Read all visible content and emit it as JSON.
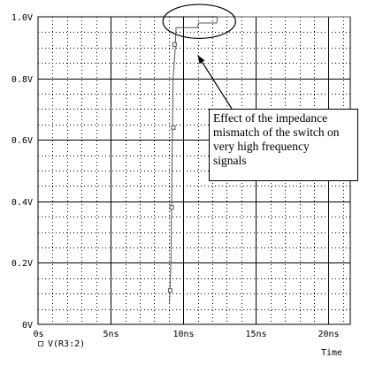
{
  "chart_data": {
    "type": "line",
    "xlabel": "Time",
    "xlim": [
      0,
      21.5
    ],
    "ylim": [
      0,
      1.0
    ],
    "x_tick_labels": [
      {
        "value": 0,
        "label": "0s"
      },
      {
        "value": 5,
        "label": "5ns"
      },
      {
        "value": 10,
        "label": "10ns"
      },
      {
        "value": 15,
        "label": "15ns"
      },
      {
        "value": 20,
        "label": "20ns"
      }
    ],
    "y_tick_labels": [
      {
        "value": 0,
        "label": "0V"
      },
      {
        "value": 0.2,
        "label": "0.2V"
      },
      {
        "value": 0.4,
        "label": "0.4V"
      },
      {
        "value": 0.6,
        "label": "0.6V"
      },
      {
        "value": 0.8,
        "label": "0.8V"
      },
      {
        "value": 1.0,
        "label": "1.0V"
      }
    ],
    "grid": {
      "major": true,
      "minor_dotted": true,
      "x_minor_step": 1,
      "y_minor_step": 0.05
    },
    "series": [
      {
        "name": "V(R3:2)",
        "marker": "square",
        "color": "#555555",
        "x": [
          9.05,
          9.15,
          9.22,
          9.3,
          9.45,
          9.5,
          11.0,
          11.05,
          12.3,
          12.35,
          21.5
        ],
        "y": [
          0.07,
          0.2,
          0.5,
          0.8,
          0.9,
          0.965,
          0.965,
          0.98,
          0.98,
          1.0,
          1.0
        ],
        "marker_points": [
          {
            "x": 9.1,
            "y": 0.11
          },
          {
            "x": 9.2,
            "y": 0.38
          },
          {
            "x": 9.32,
            "y": 0.64
          },
          {
            "x": 9.4,
            "y": 0.91
          }
        ]
      }
    ],
    "annotation": {
      "text_lines": [
        "Effect of the impedance",
        "mismatch of the switch on",
        "very high frequency",
        "signals"
      ],
      "target": {
        "x": 11.0,
        "y": 0.99
      },
      "highlight_ellipse": {
        "x_range": [
          8.6,
          13.6
        ],
        "y_range": [
          0.93,
          1.04
        ]
      }
    }
  }
}
